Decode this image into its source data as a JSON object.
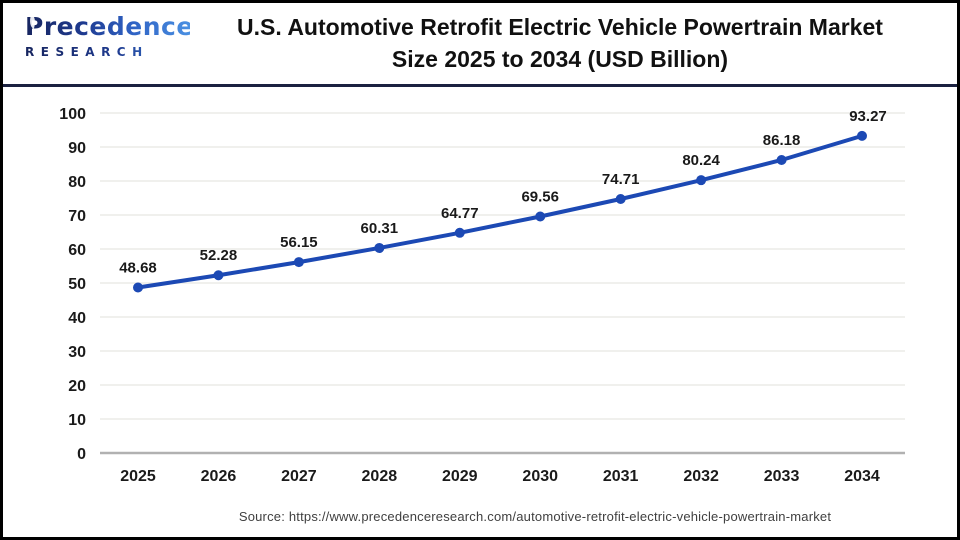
{
  "logo": {
    "brand": "Precedence",
    "subtitle": "RESEARCH"
  },
  "header": {
    "title_line1": "U.S. Automotive Retrofit Electric Vehicle Powertrain Market",
    "title_line2": "Size 2025 to 2034 (USD Billion)"
  },
  "chart_data": {
    "type": "line",
    "title": "U.S. Automotive Retrofit Electric Vehicle Powertrain Market Size 2025 to 2034 (USD Billion)",
    "categories": [
      "2025",
      "2026",
      "2027",
      "2028",
      "2029",
      "2030",
      "2031",
      "2032",
      "2033",
      "2034"
    ],
    "values": [
      48.68,
      52.28,
      56.15,
      60.31,
      64.77,
      69.56,
      74.71,
      80.24,
      86.18,
      93.27
    ],
    "xlabel": "",
    "ylabel": "",
    "ylim": [
      0,
      100
    ],
    "ytick_step": 10,
    "grid": true,
    "legend": "none",
    "line_color": "#1c49b4",
    "marker_color": "#1c49b4"
  },
  "footer": {
    "source": "Source: https://www.precedenceresearch.com/automotive-retrofit-electric-vehicle-powertrain-market"
  },
  "colors": {
    "divider": "#1b2140",
    "gridline": "#ebebe7",
    "zero_axis": "#b1b1b1",
    "tick_text": "#1a1a1a",
    "data_label_text": "#1a1a1a"
  }
}
